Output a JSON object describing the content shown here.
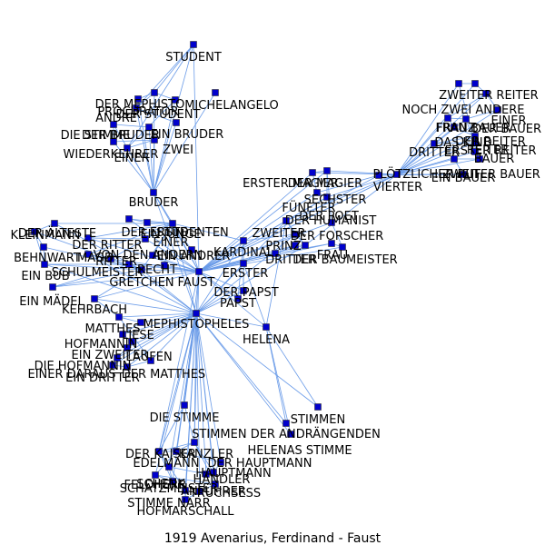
{
  "caption": "1919  Avenarius,  Ferdinand  -  Faust",
  "colors": {
    "edge": "#6a9be8",
    "node": "#0000cc",
    "node_stroke": "#333333",
    "text": "#000000"
  },
  "nodes": [
    {
      "id": "student",
      "label": "STUDENT"
    },
    {
      "id": "michelangelo",
      "label": "MICHELANGELO"
    },
    {
      "id": "der_mephisto",
      "label": "DER MEPHISTO"
    },
    {
      "id": "procurator",
      "label": "PROCURATOR"
    },
    {
      "id": "der_student_top",
      "label": "DER STUDENT"
    },
    {
      "id": "andre",
      "label": "ANDRÉ"
    },
    {
      "id": "ein_bruder",
      "label": "EIN BRUDER"
    },
    {
      "id": "die_stimme_1",
      "label": "DIE STIMME"
    },
    {
      "id": "der_bruder_2",
      "label": "DER BRUDER"
    },
    {
      "id": "zwei_top",
      "label": "ZWEI"
    },
    {
      "id": "wiederkehrer",
      "label": "WIEDERKEHRER"
    },
    {
      "id": "einer_top",
      "label": "EINER"
    },
    {
      "id": "bruder",
      "label": "BRUDER"
    },
    {
      "id": "der_aelteste",
      "label": "DER ÄLTESTE"
    },
    {
      "id": "kleinmann",
      "label": "KLEINMANN"
    },
    {
      "id": "der_ritter",
      "label": "DER RITTER"
    },
    {
      "id": "der_erste",
      "label": "DER ERSTE"
    },
    {
      "id": "studenten",
      "label": "STUDENTEN"
    },
    {
      "id": "ein_junge",
      "label": "EIN JUNGE"
    },
    {
      "id": "einer_mid",
      "label": "EINER"
    },
    {
      "id": "behnwart",
      "label": "BEHNWART"
    },
    {
      "id": "magd",
      "label": "MAGD"
    },
    {
      "id": "ritter",
      "label": "RITTER"
    },
    {
      "id": "von_den_andern",
      "label": "VON DEN ANDERN"
    },
    {
      "id": "ein_andrer",
      "label": "EIN ANDRER"
    },
    {
      "id": "ein_bub",
      "label": "EIN BUB"
    },
    {
      "id": "schulmeister",
      "label": "SCHULMEISTER"
    },
    {
      "id": "recht",
      "label": "RECHT"
    },
    {
      "id": "gretchen",
      "label": "GRETCHEN"
    },
    {
      "id": "faust",
      "label": "FAUST"
    },
    {
      "id": "kardinal",
      "label": "KARDINAL"
    },
    {
      "id": "erster",
      "label": "ERSTER"
    },
    {
      "id": "der_papst",
      "label": "DER PAPST"
    },
    {
      "id": "papst",
      "label": "PAPST"
    },
    {
      "id": "ein_maedel",
      "label": "EIN MÄDEL"
    },
    {
      "id": "kehrbach",
      "label": "KEHRBACH"
    },
    {
      "id": "mephistopheles",
      "label": "MEPHISTOPHELES"
    },
    {
      "id": "matthes",
      "label": "MATTHES"
    },
    {
      "id": "liese",
      "label": "LIESE"
    },
    {
      "id": "hofmannin",
      "label": "HOFMANNIN"
    },
    {
      "id": "ein_zweiter",
      "label": "EIN ZWEITER"
    },
    {
      "id": "laufen",
      "label": "LAUFEN"
    },
    {
      "id": "die_hofmannin",
      "label": "DIE HOFMANNIN"
    },
    {
      "id": "einer_daraus",
      "label": "EINER DARAUS"
    },
    {
      "id": "ein_dritter",
      "label": "EIN DRITTER"
    },
    {
      "id": "der_matthes",
      "label": "DER MATTHES"
    },
    {
      "id": "helena",
      "label": "HELENA"
    },
    {
      "id": "erster_magier",
      "label": "ERSTER MAGIER"
    },
    {
      "id": "der_magier",
      "label": "DER MAGIER"
    },
    {
      "id": "fuenfter",
      "label": "FÜNFTER"
    },
    {
      "id": "sechster",
      "label": "SECHSTER"
    },
    {
      "id": "der_humanist",
      "label": "DER HUMANIST"
    },
    {
      "id": "zweiter",
      "label": "ZWEITER"
    },
    {
      "id": "der_forscher",
      "label": "DER FORSCHER"
    },
    {
      "id": "prinz",
      "label": "PRINZ"
    },
    {
      "id": "dritter_mid",
      "label": "DRITTER"
    },
    {
      "id": "der_baumeister",
      "label": "DER BAUMEISTER"
    },
    {
      "id": "frau",
      "label": "FRAU"
    },
    {
      "id": "der_poet",
      "label": "DER POET"
    },
    {
      "id": "vierter",
      "label": "VIERTER"
    },
    {
      "id": "ein_bauer",
      "label": "EIN BAUER"
    },
    {
      "id": "ploetzlicher_ruf",
      "label": "PLÖTZLICHER RUF"
    },
    {
      "id": "zweiter_reiter",
      "label": "ZWEITER REITER"
    },
    {
      "id": "noch_zwei_andere",
      "label": "NOCH ZWEI ANDERE"
    },
    {
      "id": "einer_right",
      "label": "EINER"
    },
    {
      "id": "der_bauer",
      "label": "DER BAUER"
    },
    {
      "id": "frau_bauer",
      "label": "FRAU BAUER"
    },
    {
      "id": "franz",
      "label": "FRANZ"
    },
    {
      "id": "das_kind",
      "label": "DAS KIND"
    },
    {
      "id": "der_reiter",
      "label": "DER REITER"
    },
    {
      "id": "dritter_right",
      "label": "DRITTER"
    },
    {
      "id": "erster_reiter",
      "label": "ERSTER REITER"
    },
    {
      "id": "reiter",
      "label": "REITER"
    },
    {
      "id": "bauer",
      "label": "BAUER"
    },
    {
      "id": "zweiter_bauer",
      "label": "ZWEITER BAUER"
    },
    {
      "id": "die_stimme_2",
      "label": "DIE STIMME"
    },
    {
      "id": "stimmen_anon",
      "label": "STIMMEN DER ANDRÄNGENDEN"
    },
    {
      "id": "stimmen",
      "label": "STIMMEN"
    },
    {
      "id": "helenas_stimme",
      "label": "HELENAS STIMME"
    },
    {
      "id": "der_kaiser",
      "label": "DER KAISER"
    },
    {
      "id": "kanzler",
      "label": "KANZLER"
    },
    {
      "id": "edelmann",
      "label": "EDELMANN"
    },
    {
      "id": "der_hauptmann",
      "label": "DER HAUPTMANN"
    },
    {
      "id": "hauptmann",
      "label": "HAUPTMANN"
    },
    {
      "id": "haendler",
      "label": "HÄNDLER"
    },
    {
      "id": "feldherr",
      "label": "FELDHERR"
    },
    {
      "id": "schatzmeister",
      "label": "SCHATZMEISTER"
    },
    {
      "id": "schenk",
      "label": "SCHENK"
    },
    {
      "id": "truchsess",
      "label": "TRUCHSESS"
    },
    {
      "id": "anfuehrer",
      "label": "ANFÜHRER"
    },
    {
      "id": "stimme_narr",
      "label": "STIMME NARR"
    },
    {
      "id": "hofmarschall",
      "label": "HOFMARSCHALL"
    }
  ],
  "edges": [
    [
      "faust",
      "mephistopheles"
    ],
    [
      "faust",
      "student"
    ],
    [
      "faust",
      "bruder"
    ],
    [
      "faust",
      "studenten"
    ],
    [
      "faust",
      "helena"
    ],
    [
      "faust",
      "kardinal"
    ],
    [
      "faust",
      "erster"
    ],
    [
      "faust",
      "der_papst"
    ],
    [
      "faust",
      "papst"
    ],
    [
      "faust",
      "gretchen"
    ],
    [
      "faust",
      "schulmeister"
    ],
    [
      "faust",
      "ritter"
    ],
    [
      "faust",
      "der_humanist"
    ],
    [
      "faust",
      "der_forscher"
    ],
    [
      "faust",
      "zweiter"
    ],
    [
      "faust",
      "prinz"
    ],
    [
      "faust",
      "dritter_mid"
    ],
    [
      "faust",
      "der_baumeister"
    ],
    [
      "faust",
      "erster_magier"
    ],
    [
      "faust",
      "der_magier"
    ],
    [
      "faust",
      "fuenfter"
    ],
    [
      "faust",
      "sechster"
    ],
    [
      "faust",
      "frau"
    ],
    [
      "faust",
      "der_poet"
    ],
    [
      "faust",
      "die_stimme_2"
    ],
    [
      "faust",
      "der_kaiser"
    ],
    [
      "faust",
      "kanzler"
    ],
    [
      "faust",
      "der_ritter"
    ],
    [
      "faust",
      "ein_andrer"
    ],
    [
      "faust",
      "von_den_andern"
    ],
    [
      "faust",
      "recht"
    ],
    [
      "faust",
      "einer_mid"
    ],
    [
      "faust",
      "der_erste"
    ],
    [
      "faust",
      "kehrbach"
    ],
    [
      "faust",
      "ein_maedel"
    ],
    [
      "faust",
      "ploetzlicher_ruf"
    ],
    [
      "faust",
      "der_reiter"
    ],
    [
      "faust",
      "vierter"
    ],
    [
      "mephistopheles",
      "helena"
    ],
    [
      "mephistopheles",
      "studenten"
    ],
    [
      "mephistopheles",
      "bruder"
    ],
    [
      "mephistopheles",
      "matthes"
    ],
    [
      "mephistopheles",
      "liese"
    ],
    [
      "mephistopheles",
      "hofmannin"
    ],
    [
      "mephistopheles",
      "ein_zweiter"
    ],
    [
      "mephistopheles",
      "laufen"
    ],
    [
      "mephistopheles",
      "die_hofmannin"
    ],
    [
      "mephistopheles",
      "einer_daraus"
    ],
    [
      "mephistopheles",
      "ein_dritter"
    ],
    [
      "mephistopheles",
      "der_matthes"
    ],
    [
      "mephistopheles",
      "die_stimme_2"
    ],
    [
      "mephistopheles",
      "der_kaiser"
    ],
    [
      "mephistopheles",
      "kanzler"
    ],
    [
      "mephistopheles",
      "edelmann"
    ],
    [
      "mephistopheles",
      "der_hauptmann"
    ],
    [
      "mephistopheles",
      "hauptmann"
    ],
    [
      "mephistopheles",
      "haendler"
    ],
    [
      "mephistopheles",
      "feldherr"
    ],
    [
      "mephistopheles",
      "schatzmeister"
    ],
    [
      "mephistopheles",
      "schenk"
    ],
    [
      "mephistopheles",
      "truchsess"
    ],
    [
      "mephistopheles",
      "anfuehrer"
    ],
    [
      "mephistopheles",
      "stimme_narr"
    ],
    [
      "mephistopheles",
      "hofmarschall"
    ],
    [
      "mephistopheles",
      "stimmen"
    ],
    [
      "mephistopheles",
      "helenas_stimme"
    ],
    [
      "mephistopheles",
      "stimmen_anon"
    ],
    [
      "mephistopheles",
      "gretchen"
    ],
    [
      "mephistopheles",
      "kehrbach"
    ],
    [
      "mephistopheles",
      "schulmeister"
    ],
    [
      "mephistopheles",
      "kardinal"
    ],
    [
      "mephistopheles",
      "erster"
    ],
    [
      "mephistopheles",
      "der_papst"
    ],
    [
      "mephistopheles",
      "der_humanist"
    ],
    [
      "mephistopheles",
      "zweiter"
    ],
    [
      "mephistopheles",
      "der_forscher"
    ],
    [
      "mephistopheles",
      "ein_bub"
    ],
    [
      "mephistopheles",
      "magd"
    ],
    [
      "helena",
      "stimmen"
    ],
    [
      "helena",
      "helenas_stimme"
    ],
    [
      "helena",
      "stimmen_anon"
    ],
    [
      "helena",
      "der_humanist"
    ],
    [
      "helena",
      "erster"
    ],
    [
      "student",
      "der_mephisto"
    ],
    [
      "student",
      "andre"
    ],
    [
      "student",
      "einer_top"
    ],
    [
      "student",
      "bruder"
    ],
    [
      "bruder",
      "der_mephisto"
    ],
    [
      "bruder",
      "procurator"
    ],
    [
      "bruder",
      "der_student_top"
    ],
    [
      "bruder",
      "andre"
    ],
    [
      "bruder",
      "ein_bruder"
    ],
    [
      "bruder",
      "die_stimme_1"
    ],
    [
      "bruder",
      "der_bruder_2"
    ],
    [
      "bruder",
      "zwei_top"
    ],
    [
      "bruder",
      "wiederkehrer"
    ],
    [
      "bruder",
      "einer_top"
    ],
    [
      "bruder",
      "michelangelo"
    ],
    [
      "bruder",
      "studenten"
    ],
    [
      "der_mephisto",
      "procurator"
    ],
    [
      "der_mephisto",
      "der_student_top"
    ],
    [
      "der_mephisto",
      "andre"
    ],
    [
      "procurator",
      "andre"
    ],
    [
      "andre",
      "ein_bruder"
    ],
    [
      "die_stimme_1",
      "der_bruder_2"
    ],
    [
      "zwei_top",
      "wiederkehrer"
    ],
    [
      "einer_top",
      "zwei_top"
    ],
    [
      "der_student_top",
      "einer_top"
    ],
    [
      "die_stimme_1",
      "wiederkehrer"
    ],
    [
      "studenten",
      "der_aelteste"
    ],
    [
      "studenten",
      "der_ritter"
    ],
    [
      "studenten",
      "der_erste"
    ],
    [
      "studenten",
      "ein_junge"
    ],
    [
      "studenten",
      "einer_mid"
    ],
    [
      "studenten",
      "von_den_andern"
    ],
    [
      "studenten",
      "ein_andrer"
    ],
    [
      "studenten",
      "recht"
    ],
    [
      "studenten",
      "gretchen"
    ],
    [
      "studenten",
      "kardinal"
    ],
    [
      "studenten",
      "ritter"
    ],
    [
      "studenten",
      "magd"
    ],
    [
      "gretchen",
      "der_aelteste"
    ],
    [
      "gretchen",
      "kleinmann"
    ],
    [
      "gretchen",
      "behnwart"
    ],
    [
      "gretchen",
      "ein_bub"
    ],
    [
      "gretchen",
      "schulmeister"
    ],
    [
      "gretchen",
      "magd"
    ],
    [
      "gretchen",
      "ein_maedel"
    ],
    [
      "gretchen",
      "kehrbach"
    ],
    [
      "gretchen",
      "ritter"
    ],
    [
      "gretchen",
      "recht"
    ],
    [
      "kleinmann",
      "der_aelteste"
    ],
    [
      "kleinmann",
      "behnwart"
    ],
    [
      "kleinmann",
      "ein_bub"
    ],
    [
      "behnwart",
      "ein_bub"
    ],
    [
      "ein_bub",
      "schulmeister"
    ],
    [
      "schulmeister",
      "recht"
    ],
    [
      "magd",
      "ritter"
    ],
    [
      "der_ritter",
      "einer_mid"
    ],
    [
      "der_erste",
      "ein_junge"
    ],
    [
      "ein_maedel",
      "schulmeister"
    ],
    [
      "kehrbach",
      "matthes"
    ],
    [
      "matthes",
      "liese"
    ],
    [
      "liese",
      "hofmannin"
    ],
    [
      "hofmannin",
      "ein_zweiter"
    ],
    [
      "ein_zweiter",
      "laufen"
    ],
    [
      "laufen",
      "die_hofmannin"
    ],
    [
      "die_hofmannin",
      "einer_daraus"
    ],
    [
      "einer_daraus",
      "ein_dritter"
    ],
    [
      "ein_dritter",
      "der_matthes"
    ],
    [
      "matthes",
      "der_matthes"
    ],
    [
      "kardinal",
      "erster"
    ],
    [
      "kardinal",
      "der_papst"
    ],
    [
      "kardinal",
      "papst"
    ],
    [
      "erster",
      "der_papst"
    ],
    [
      "der_papst",
      "papst"
    ],
    [
      "kardinal",
      "zweiter"
    ],
    [
      "erster_magier",
      "der_magier"
    ],
    [
      "erster_magier",
      "fuenfter"
    ],
    [
      "der_magier",
      "sechster"
    ],
    [
      "fuenfter",
      "sechster"
    ],
    [
      "sechster",
      "der_humanist"
    ],
    [
      "der_humanist",
      "zweiter"
    ],
    [
      "zweiter",
      "der_forscher"
    ],
    [
      "der_forscher",
      "prinz"
    ],
    [
      "prinz",
      "dritter_mid"
    ],
    [
      "dritter_mid",
      "der_baumeister"
    ],
    [
      "der_baumeister",
      "frau"
    ],
    [
      "frau",
      "der_poet"
    ],
    [
      "der_poet",
      "der_magier"
    ],
    [
      "der_humanist",
      "der_forscher"
    ],
    [
      "zweiter",
      "prinz"
    ],
    [
      "erster_magier",
      "ploetzlicher_ruf"
    ],
    [
      "der_magier",
      "ploetzlicher_ruf"
    ],
    [
      "fuenfter",
      "vierter"
    ],
    [
      "sechster",
      "ploetzlicher_ruf"
    ],
    [
      "der_humanist",
      "ploetzlicher_ruf"
    ],
    [
      "der_forscher",
      "ploetzlicher_ruf"
    ],
    [
      "ploetzlicher_ruf",
      "zweiter_reiter"
    ],
    [
      "ploetzlicher_ruf",
      "noch_zwei_andere"
    ],
    [
      "ploetzlicher_ruf",
      "einer_right"
    ],
    [
      "ploetzlicher_ruf",
      "der_bauer"
    ],
    [
      "ploetzlicher_ruf",
      "frau_bauer"
    ],
    [
      "ploetzlicher_ruf",
      "franz"
    ],
    [
      "ploetzlicher_ruf",
      "das_kind"
    ],
    [
      "ploetzlicher_ruf",
      "der_reiter"
    ],
    [
      "ploetzlicher_ruf",
      "dritter_right"
    ],
    [
      "ploetzlicher_ruf",
      "erster_reiter"
    ],
    [
      "ploetzlicher_ruf",
      "reiter"
    ],
    [
      "ploetzlicher_ruf",
      "bauer"
    ],
    [
      "ploetzlicher_ruf",
      "zweiter_bauer"
    ],
    [
      "ploetzlicher_ruf",
      "ein_bauer"
    ],
    [
      "zweiter_reiter",
      "noch_zwei_andere"
    ],
    [
      "noch_zwei_andere",
      "einer_right"
    ],
    [
      "einer_right",
      "der_bauer"
    ],
    [
      "der_bauer",
      "frau_bauer"
    ],
    [
      "frau_bauer",
      "franz"
    ],
    [
      "franz",
      "das_kind"
    ],
    [
      "das_kind",
      "der_reiter"
    ],
    [
      "der_reiter",
      "dritter_right"
    ],
    [
      "dritter_right",
      "erster_reiter"
    ],
    [
      "erster_reiter",
      "reiter"
    ],
    [
      "reiter",
      "bauer"
    ],
    [
      "bauer",
      "zweiter_bauer"
    ],
    [
      "zweiter_bauer",
      "ein_bauer"
    ],
    [
      "zweiter_reiter",
      "erster_reiter"
    ],
    [
      "der_reiter",
      "reiter"
    ],
    [
      "frau_bauer",
      "bauer"
    ],
    [
      "einer_right",
      "franz"
    ],
    [
      "ein_bauer",
      "vierter"
    ],
    [
      "vierter",
      "ploetzlicher_ruf"
    ],
    [
      "die_stimme_2",
      "der_kaiser"
    ],
    [
      "der_kaiser",
      "kanzler"
    ],
    [
      "kanzler",
      "edelmann"
    ],
    [
      "edelmann",
      "der_hauptmann"
    ],
    [
      "der_hauptmann",
      "hauptmann"
    ],
    [
      "hauptmann",
      "haendler"
    ],
    [
      "haendler",
      "feldherr"
    ],
    [
      "feldherr",
      "schatzmeister"
    ],
    [
      "schatzmeister",
      "schenk"
    ],
    [
      "schenk",
      "truchsess"
    ],
    [
      "truchsess",
      "anfuehrer"
    ],
    [
      "anfuehrer",
      "stimme_narr"
    ],
    [
      "stimme_narr",
      "hofmarschall"
    ],
    [
      "der_kaiser",
      "edelmann"
    ],
    [
      "der_kaiser",
      "feldherr"
    ],
    [
      "der_kaiser",
      "schatzmeister"
    ],
    [
      "kanzler",
      "hauptmann"
    ],
    [
      "der_kaiser",
      "hofmarschall"
    ],
    [
      "kanzler",
      "truchsess"
    ],
    [
      "edelmann",
      "schenk"
    ],
    [
      "die_stimme_2",
      "kanzler"
    ]
  ]
}
